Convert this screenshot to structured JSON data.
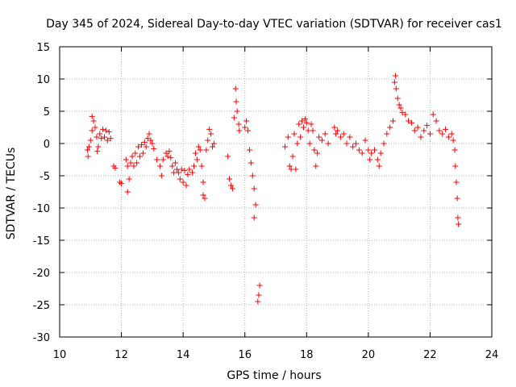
{
  "chart_data": {
    "type": "scatter",
    "title": "Day 345 of 2024, Sidereal Day-to-day VTEC variation (SDTVAR) for receiver cas1",
    "xlabel": "GPS time / hours",
    "ylabel": "SDTVAR / TECUs",
    "xlim": [
      10,
      24
    ],
    "ylim": [
      -30,
      15
    ],
    "xticks": [
      10,
      12,
      14,
      16,
      18,
      20,
      22,
      24
    ],
    "yticks": [
      -30,
      -25,
      -20,
      -15,
      -10,
      -5,
      0,
      5,
      10,
      15
    ],
    "grid": true,
    "marker": "+",
    "series": [
      {
        "name": "SDTVAR",
        "color": "#ff0000",
        "points": [
          [
            10.9,
            -1.0
          ],
          [
            10.95,
            -0.5
          ],
          [
            11.0,
            0.5
          ],
          [
            11.05,
            2.0
          ],
          [
            11.1,
            3.5
          ],
          [
            11.15,
            2.5
          ],
          [
            11.2,
            1.0
          ],
          [
            11.25,
            -0.5
          ],
          [
            11.3,
            1.5
          ],
          [
            11.35,
            0.8
          ],
          [
            11.4,
            2.2
          ],
          [
            11.45,
            1.0
          ],
          [
            11.5,
            2.0
          ],
          [
            11.55,
            0.5
          ],
          [
            11.6,
            1.8
          ],
          [
            11.65,
            0.8
          ],
          [
            11.05,
            4.2
          ],
          [
            10.92,
            -2.0
          ],
          [
            11.22,
            -1.2
          ],
          [
            11.75,
            -3.5
          ],
          [
            11.8,
            -3.8
          ],
          [
            11.95,
            -6.0
          ],
          [
            12.0,
            -6.2
          ],
          [
            12.15,
            -2.5
          ],
          [
            12.2,
            -3.5
          ],
          [
            12.25,
            -5.5
          ],
          [
            12.2,
            -7.5
          ],
          [
            12.3,
            -3.0
          ],
          [
            12.35,
            -2.0
          ],
          [
            12.4,
            -3.5
          ],
          [
            12.45,
            -1.5
          ],
          [
            12.5,
            -3.0
          ],
          [
            12.55,
            -0.5
          ],
          [
            12.6,
            -2.0
          ],
          [
            12.65,
            -0.2
          ],
          [
            12.7,
            -1.5
          ],
          [
            12.75,
            0.2
          ],
          [
            12.8,
            -0.5
          ],
          [
            12.85,
            0.8
          ],
          [
            12.9,
            1.5
          ],
          [
            12.95,
            0.5
          ],
          [
            13.0,
            0.0
          ],
          [
            13.05,
            -0.8
          ],
          [
            13.15,
            -2.5
          ],
          [
            13.25,
            -3.5
          ],
          [
            13.3,
            -5.0
          ],
          [
            13.35,
            -2.5
          ],
          [
            13.45,
            -1.5
          ],
          [
            13.5,
            -2.0
          ],
          [
            13.55,
            -1.2
          ],
          [
            13.6,
            -2.2
          ],
          [
            13.65,
            -3.5
          ],
          [
            13.7,
            -4.5
          ],
          [
            13.75,
            -3.0
          ],
          [
            13.8,
            -4.0
          ],
          [
            13.85,
            -4.5
          ],
          [
            13.9,
            -5.5
          ],
          [
            13.95,
            -4.0
          ],
          [
            14.0,
            -6.0
          ],
          [
            14.05,
            -4.2
          ],
          [
            14.1,
            -6.5
          ],
          [
            14.15,
            -4.8
          ],
          [
            14.2,
            -4.0
          ],
          [
            14.3,
            -4.5
          ],
          [
            14.35,
            -3.5
          ],
          [
            14.4,
            -1.5
          ],
          [
            14.45,
            -2.5
          ],
          [
            14.5,
            -0.5
          ],
          [
            14.55,
            -1.0
          ],
          [
            14.6,
            -3.5
          ],
          [
            14.65,
            -6.0
          ],
          [
            14.7,
            -8.5
          ],
          [
            14.65,
            -8.0
          ],
          [
            14.75,
            -1.0
          ],
          [
            14.8,
            0.5
          ],
          [
            14.85,
            2.2
          ],
          [
            14.9,
            1.5
          ],
          [
            14.95,
            -0.5
          ],
          [
            15.0,
            0.0
          ],
          [
            15.45,
            -2.0
          ],
          [
            15.5,
            -5.5
          ],
          [
            15.55,
            -6.5
          ],
          [
            15.6,
            -7.0
          ],
          [
            15.65,
            4.0
          ],
          [
            15.7,
            8.5
          ],
          [
            15.72,
            6.5
          ],
          [
            15.75,
            5.0
          ],
          [
            15.8,
            3.0
          ],
          [
            15.82,
            2.0
          ],
          [
            16.0,
            2.5
          ],
          [
            16.05,
            3.5
          ],
          [
            16.1,
            2.0
          ],
          [
            16.15,
            -1.0
          ],
          [
            16.2,
            -3.0
          ],
          [
            16.25,
            -5.0
          ],
          [
            16.3,
            -7.0
          ],
          [
            16.35,
            -9.5
          ],
          [
            16.3,
            -11.5
          ],
          [
            16.42,
            -24.5
          ],
          [
            16.45,
            -23.5
          ],
          [
            16.48,
            -22.0
          ],
          [
            17.3,
            -0.5
          ],
          [
            17.4,
            1.0
          ],
          [
            17.45,
            -3.5
          ],
          [
            17.5,
            -4.0
          ],
          [
            17.55,
            -2.0
          ],
          [
            17.6,
            1.5
          ],
          [
            17.65,
            -4.0
          ],
          [
            17.7,
            0.0
          ],
          [
            17.75,
            3.0
          ],
          [
            17.8,
            1.0
          ],
          [
            17.85,
            3.5
          ],
          [
            17.9,
            2.5
          ],
          [
            17.95,
            3.8
          ],
          [
            18.0,
            3.2
          ],
          [
            18.05,
            2.0
          ],
          [
            18.1,
            0.0
          ],
          [
            18.15,
            3.0
          ],
          [
            18.2,
            2.0
          ],
          [
            18.25,
            -1.0
          ],
          [
            18.3,
            -3.5
          ],
          [
            18.35,
            -1.5
          ],
          [
            18.4,
            1.0
          ],
          [
            18.5,
            0.5
          ],
          [
            18.6,
            1.5
          ],
          [
            18.7,
            0.0
          ],
          [
            18.9,
            2.5
          ],
          [
            18.95,
            1.5
          ],
          [
            19.0,
            2.0
          ],
          [
            19.1,
            1.0
          ],
          [
            19.2,
            1.5
          ],
          [
            19.3,
            0.0
          ],
          [
            19.4,
            1.0
          ],
          [
            19.5,
            -0.5
          ],
          [
            19.6,
            0.0
          ],
          [
            19.7,
            -1.0
          ],
          [
            19.8,
            -1.5
          ],
          [
            19.9,
            0.5
          ],
          [
            20.0,
            -1.0
          ],
          [
            20.05,
            -2.5
          ],
          [
            20.1,
            -1.5
          ],
          [
            20.2,
            -1.0
          ],
          [
            20.3,
            -2.5
          ],
          [
            20.35,
            -3.5
          ],
          [
            20.4,
            -1.5
          ],
          [
            20.5,
            0.0
          ],
          [
            20.6,
            1.5
          ],
          [
            20.7,
            2.5
          ],
          [
            20.8,
            3.5
          ],
          [
            20.85,
            9.5
          ],
          [
            20.88,
            10.5
          ],
          [
            20.9,
            8.5
          ],
          [
            20.95,
            7.0
          ],
          [
            21.0,
            6.0
          ],
          [
            21.05,
            5.5
          ],
          [
            21.1,
            4.8
          ],
          [
            21.2,
            4.5
          ],
          [
            21.3,
            3.5
          ],
          [
            21.4,
            3.2
          ],
          [
            21.5,
            2.0
          ],
          [
            21.6,
            2.5
          ],
          [
            21.7,
            1.0
          ],
          [
            21.8,
            2.0
          ],
          [
            21.9,
            2.8
          ],
          [
            22.0,
            1.5
          ],
          [
            22.1,
            4.5
          ],
          [
            22.2,
            3.5
          ],
          [
            22.3,
            2.0
          ],
          [
            22.4,
            1.5
          ],
          [
            22.5,
            2.2
          ],
          [
            22.6,
            1.0
          ],
          [
            22.7,
            1.5
          ],
          [
            22.75,
            0.5
          ],
          [
            22.8,
            -1.0
          ],
          [
            22.82,
            -3.5
          ],
          [
            22.85,
            -6.0
          ],
          [
            22.88,
            -8.5
          ],
          [
            22.9,
            -11.5
          ],
          [
            22.92,
            -12.5
          ]
        ]
      }
    ]
  }
}
